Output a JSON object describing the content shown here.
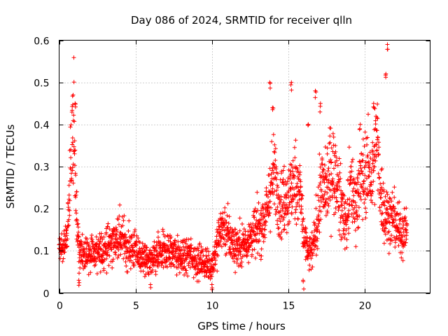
{
  "chart_data": {
    "type": "scatter",
    "title": "Day 086 of 2024, SRMTID for receiver qlln",
    "xlabel": "GPS time / hours",
    "ylabel": "SRMTID / TECUs",
    "xlim": [
      0,
      24.3
    ],
    "ylim": [
      0,
      0.6
    ],
    "x_ticks": [
      0,
      5,
      10,
      15,
      20
    ],
    "x_tick_labels": [
      "0",
      "5",
      "10",
      "15",
      "20"
    ],
    "y_ticks": [
      0,
      0.1,
      0.2,
      0.3,
      0.4,
      0.5,
      0.6
    ],
    "y_tick_labels": [
      "0",
      "0.1",
      "0.2",
      "0.3",
      "0.4",
      "0.5",
      "0.6"
    ],
    "grid": true,
    "marker": "plus",
    "color": "#ff0000",
    "series": [
      {
        "name": "SRMTID",
        "trend": [
          [
            0,
            0.12
          ],
          [
            0.3,
            0.1
          ],
          [
            0.55,
            0.14
          ],
          [
            0.7,
            0.27
          ],
          [
            0.85,
            0.34
          ],
          [
            0.95,
            0.42
          ],
          [
            1.05,
            0.3
          ],
          [
            1.15,
            0.18
          ],
          [
            1.3,
            0.1
          ],
          [
            1.6,
            0.08
          ],
          [
            2.0,
            0.1
          ],
          [
            2.5,
            0.09
          ],
          [
            3.0,
            0.11
          ],
          [
            3.5,
            0.12
          ],
          [
            4.0,
            0.13
          ],
          [
            4.5,
            0.11
          ],
          [
            5.0,
            0.1
          ],
          [
            5.5,
            0.08
          ],
          [
            6.0,
            0.07
          ],
          [
            6.5,
            0.09
          ],
          [
            7.0,
            0.1
          ],
          [
            7.5,
            0.1
          ],
          [
            8.0,
            0.08
          ],
          [
            8.5,
            0.09
          ],
          [
            9.0,
            0.08
          ],
          [
            9.5,
            0.07
          ],
          [
            9.9,
            0.06
          ],
          [
            10.2,
            0.09
          ],
          [
            10.6,
            0.16
          ],
          [
            10.9,
            0.15
          ],
          [
            11.3,
            0.12
          ],
          [
            11.7,
            0.11
          ],
          [
            12.2,
            0.12
          ],
          [
            12.7,
            0.14
          ],
          [
            13.2,
            0.16
          ],
          [
            13.6,
            0.19
          ],
          [
            13.9,
            0.26
          ],
          [
            14.1,
            0.28
          ],
          [
            14.4,
            0.22
          ],
          [
            14.8,
            0.22
          ],
          [
            15.2,
            0.24
          ],
          [
            15.5,
            0.27
          ],
          [
            15.8,
            0.24
          ],
          [
            16.0,
            0.14
          ],
          [
            16.3,
            0.09
          ],
          [
            16.6,
            0.1
          ],
          [
            16.9,
            0.17
          ],
          [
            17.2,
            0.26
          ],
          [
            17.5,
            0.24
          ],
          [
            17.8,
            0.3
          ],
          [
            18.1,
            0.28
          ],
          [
            18.4,
            0.22
          ],
          [
            18.8,
            0.16
          ],
          [
            19.1,
            0.26
          ],
          [
            19.4,
            0.21
          ],
          [
            19.8,
            0.27
          ],
          [
            20.2,
            0.29
          ],
          [
            20.5,
            0.27
          ],
          [
            20.8,
            0.37
          ],
          [
            21.0,
            0.26
          ],
          [
            21.3,
            0.19
          ],
          [
            21.6,
            0.18
          ],
          [
            22.0,
            0.17
          ],
          [
            22.4,
            0.14
          ],
          [
            22.8,
            0.16
          ]
        ],
        "peaks": [
          [
            0.9,
            0.47
          ],
          [
            1.05,
            0.45
          ],
          [
            13.8,
            0.5
          ],
          [
            15.2,
            0.5
          ],
          [
            16.8,
            0.48
          ],
          [
            17.1,
            0.45
          ],
          [
            20.6,
            0.45
          ],
          [
            21.5,
            0.59
          ],
          [
            21.4,
            0.52
          ],
          [
            14.0,
            0.44
          ],
          [
            16.3,
            0.4
          ],
          [
            19.7,
            0.4
          ],
          [
            16.0,
            0.03
          ],
          [
            1.3,
            0.03
          ],
          [
            10.0,
            0.02
          ],
          [
            6.0,
            0.02
          ]
        ]
      }
    ]
  }
}
